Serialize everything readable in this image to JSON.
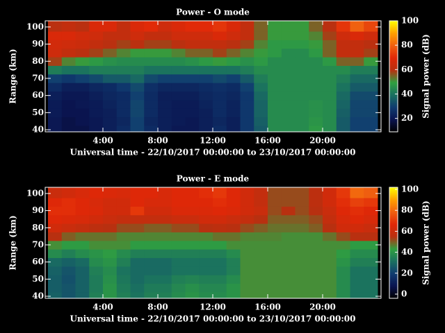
{
  "chart_data": [
    {
      "type": "heatmap",
      "title": "Power - O mode",
      "xlabel": "Universal time - 22/10/2017 00:00:00 to 23/10/2017 00:00:00",
      "ylabel": "Range (km)",
      "colorbar_label": "Signal power (dB)",
      "x": [
        0.5,
        1.5,
        2.5,
        3.5,
        4.5,
        5.5,
        6.5,
        7.5,
        8.5,
        9.5,
        10.5,
        11.5,
        12.5,
        13.5,
        14.5,
        15.5,
        16.5,
        17.5,
        18.5,
        19.5,
        20.5,
        21.5,
        22.5,
        23.5
      ],
      "y": [
        40,
        45,
        50,
        55,
        60,
        65,
        70,
        75,
        80,
        85,
        90,
        95,
        100
      ],
      "z": [
        [
          20,
          18,
          18,
          20,
          22,
          25,
          30,
          25,
          22,
          20,
          20,
          22,
          25,
          22,
          28,
          35,
          45,
          45,
          45,
          48,
          45,
          35,
          30,
          30
        ],
        [
          20,
          18,
          19,
          20,
          22,
          24,
          30,
          24,
          22,
          21,
          20,
          22,
          24,
          22,
          28,
          36,
          45,
          45,
          45,
          47,
          45,
          35,
          30,
          30
        ],
        [
          21,
          19,
          19,
          21,
          22,
          25,
          31,
          25,
          22,
          21,
          21,
          22,
          25,
          23,
          28,
          37,
          45,
          45,
          45,
          46,
          45,
          36,
          31,
          31
        ],
        [
          21,
          19,
          20,
          21,
          23,
          25,
          31,
          25,
          22,
          21,
          21,
          23,
          25,
          23,
          28,
          37,
          45,
          45,
          45,
          46,
          45,
          37,
          31,
          31
        ],
        [
          22,
          20,
          20,
          22,
          24,
          25,
          30,
          25,
          22,
          22,
          22,
          24,
          25,
          24,
          28,
          38,
          45,
          45,
          45,
          45,
          45,
          38,
          32,
          32
        ],
        [
          25,
          22,
          22,
          24,
          25,
          28,
          32,
          26,
          24,
          24,
          24,
          25,
          26,
          25,
          30,
          40,
          45,
          45,
          45,
          45,
          45,
          40,
          35,
          35
        ],
        [
          30,
          28,
          30,
          32,
          35,
          35,
          38,
          32,
          30,
          30,
          30,
          30,
          32,
          30,
          35,
          42,
          45,
          45,
          45,
          45,
          45,
          42,
          38,
          38
        ],
        [
          42,
          40,
          40,
          42,
          42,
          42,
          42,
          40,
          40,
          40,
          40,
          40,
          40,
          40,
          42,
          45,
          45,
          45,
          45,
          45,
          45,
          45,
          42,
          42
        ],
        [
          58,
          52,
          50,
          48,
          46,
          45,
          45,
          45,
          45,
          45,
          46,
          48,
          50,
          48,
          46,
          48,
          45,
          45,
          45,
          45,
          48,
          55,
          55,
          50
        ],
        [
          65,
          62,
          60,
          58,
          55,
          52,
          50,
          50,
          50,
          52,
          55,
          55,
          58,
          55,
          52,
          50,
          48,
          45,
          45,
          48,
          55,
          62,
          62,
          58
        ],
        [
          66,
          65,
          64,
          62,
          60,
          58,
          60,
          58,
          58,
          60,
          62,
          62,
          62,
          60,
          58,
          52,
          48,
          48,
          48,
          50,
          55,
          62,
          62,
          60
        ],
        [
          68,
          68,
          66,
          65,
          62,
          62,
          65,
          62,
          62,
          65,
          65,
          65,
          68,
          65,
          62,
          55,
          50,
          50,
          50,
          52,
          58,
          65,
          68,
          65
        ],
        [
          60,
          62,
          60,
          68,
          68,
          62,
          68,
          70,
          65,
          68,
          70,
          70,
          72,
          68,
          62,
          55,
          50,
          50,
          50,
          55,
          60,
          72,
          80,
          75
        ]
      ],
      "xlim": [
        0,
        24
      ],
      "ylim": [
        38.8,
        103.6
      ],
      "xticks": [
        {
          "value": 4,
          "label": "4:00"
        },
        {
          "value": 8,
          "label": "8:00"
        },
        {
          "value": 12,
          "label": "12:00"
        },
        {
          "value": 16,
          "label": "16:00"
        },
        {
          "value": 20,
          "label": "20:00"
        }
      ],
      "yticks": [
        40,
        50,
        60,
        70,
        80,
        90,
        100
      ],
      "zlim": [
        9,
        100
      ],
      "zticks": [
        20,
        40,
        60,
        80,
        100
      ],
      "colorscale": [
        "#000000",
        "#0a1450",
        "#103c70",
        "#1a7060",
        "#30a040",
        "#b83010",
        "#e02808",
        "#f06010",
        "#ffa000",
        "#ffff00"
      ]
    },
    {
      "type": "heatmap",
      "title": "Power - E mode",
      "xlabel": "Universal time - 22/10/2017 00:00:00 to 23/10/2017 00:00:00",
      "ylabel": "Range (km)",
      "colorbar_label": "Signal power (dB)",
      "x": [
        0.5,
        1.5,
        2.5,
        3.5,
        4.5,
        5.5,
        6.5,
        7.5,
        8.5,
        9.5,
        10.5,
        11.5,
        12.5,
        13.5,
        14.5,
        15.5,
        16.5,
        17.5,
        18.5,
        19.5,
        20.5,
        21.5,
        22.5,
        23.5
      ],
      "y": [
        40,
        45,
        50,
        55,
        60,
        65,
        70,
        75,
        80,
        85,
        90,
        95,
        100
      ],
      "z": [
        [
          28,
          25,
          28,
          35,
          40,
          35,
          32,
          35,
          35,
          38,
          40,
          38,
          38,
          40,
          45,
          45,
          45,
          45,
          45,
          45,
          45,
          38,
          32,
          32
        ],
        [
          27,
          25,
          28,
          34,
          40,
          34,
          31,
          34,
          34,
          37,
          39,
          37,
          37,
          40,
          45,
          45,
          45,
          45,
          45,
          45,
          45,
          38,
          32,
          32
        ],
        [
          27,
          24,
          28,
          34,
          39,
          33,
          30,
          32,
          32,
          35,
          36,
          35,
          35,
          38,
          45,
          45,
          45,
          45,
          45,
          45,
          45,
          38,
          32,
          32
        ],
        [
          28,
          25,
          28,
          35,
          38,
          32,
          30,
          30,
          30,
          32,
          32,
          32,
          32,
          35,
          45,
          45,
          45,
          45,
          45,
          45,
          45,
          38,
          32,
          32
        ],
        [
          30,
          28,
          30,
          38,
          40,
          35,
          30,
          30,
          30,
          32,
          32,
          32,
          32,
          35,
          45,
          45,
          45,
          45,
          45,
          45,
          45,
          40,
          35,
          35
        ],
        [
          38,
          35,
          38,
          40,
          42,
          38,
          35,
          35,
          35,
          35,
          35,
          35,
          35,
          38,
          45,
          45,
          45,
          45,
          45,
          45,
          45,
          42,
          38,
          38
        ],
        [
          45,
          42,
          42,
          45,
          45,
          45,
          42,
          42,
          42,
          42,
          42,
          42,
          42,
          45,
          45,
          45,
          45,
          45,
          45,
          45,
          45,
          45,
          42,
          42
        ],
        [
          55,
          50,
          48,
          48,
          48,
          46,
          46,
          46,
          46,
          46,
          46,
          46,
          48,
          48,
          46,
          46,
          46,
          45,
          45,
          45,
          48,
          52,
          55,
          55
        ],
        [
          62,
          60,
          58,
          56,
          55,
          52,
          52,
          50,
          50,
          52,
          52,
          55,
          56,
          55,
          52,
          50,
          48,
          48,
          48,
          50,
          55,
          62,
          62,
          60
        ],
        [
          66,
          65,
          64,
          62,
          60,
          58,
          58,
          58,
          58,
          60,
          60,
          62,
          62,
          60,
          58,
          55,
          50,
          50,
          50,
          52,
          58,
          64,
          66,
          64
        ],
        [
          68,
          68,
          66,
          65,
          62,
          62,
          70,
          62,
          62,
          65,
          65,
          65,
          66,
          65,
          62,
          60,
          52,
          55,
          52,
          55,
          60,
          66,
          68,
          66
        ],
        [
          66,
          68,
          66,
          64,
          62,
          62,
          66,
          64,
          64,
          66,
          66,
          66,
          68,
          66,
          62,
          58,
          52,
          52,
          52,
          56,
          62,
          68,
          72,
          70
        ],
        [
          60,
          62,
          64,
          66,
          65,
          64,
          66,
          66,
          64,
          66,
          66,
          68,
          70,
          66,
          62,
          58,
          52,
          52,
          52,
          56,
          62,
          70,
          80,
          78
        ]
      ],
      "xlim": [
        0,
        24
      ],
      "ylim": [
        38.8,
        103.6
      ],
      "xticks": [
        {
          "value": 4,
          "label": "4:00"
        },
        {
          "value": 8,
          "label": "8:00"
        },
        {
          "value": 12,
          "label": "12:00"
        },
        {
          "value": 16,
          "label": "16:00"
        },
        {
          "value": 20,
          "label": "20:00"
        }
      ],
      "yticks": [
        40,
        50,
        60,
        70,
        80,
        90,
        100
      ],
      "zlim": [
        -4,
        102
      ],
      "zticks": [
        0,
        20,
        40,
        60,
        80,
        100
      ],
      "colorscale": [
        "#000000",
        "#0a1450",
        "#103c70",
        "#1a7060",
        "#30a040",
        "#b83010",
        "#e02808",
        "#f06010",
        "#ffa000",
        "#ffff00"
      ]
    }
  ]
}
